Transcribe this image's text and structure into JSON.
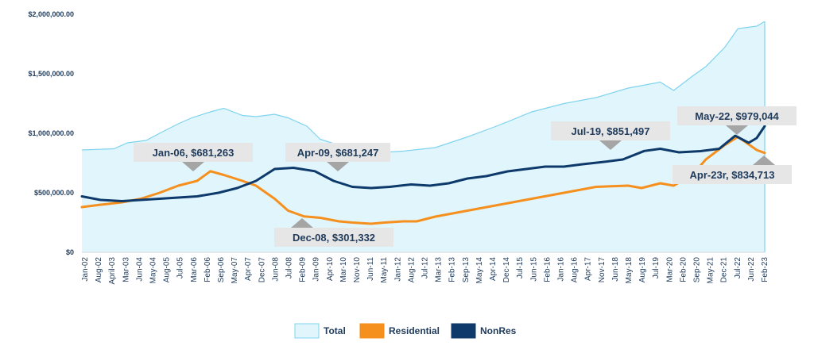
{
  "chart_data": {
    "type": "line",
    "ylim": [
      0,
      2000000
    ],
    "y_ticks": [
      "$0",
      "$500,000.00",
      "$1,000,000.00",
      "$1,500,000.00",
      "$2,000,000.00"
    ],
    "y_tick_values": [
      0,
      500000,
      1000000,
      1500000,
      2000000
    ],
    "x_start": "2002-01",
    "x_end": "2023-04",
    "x_ticks": [
      {
        "label": "Jan-02",
        "date": "2002-01"
      },
      {
        "label": "Aug-02",
        "date": "2002-08"
      },
      {
        "label": "April-03",
        "date": "2003-04"
      },
      {
        "label": "Mar-03",
        "date": "2003-11"
      },
      {
        "label": "Jun-04",
        "date": "2004-06"
      },
      {
        "label": "May-04",
        "date": "2005-01"
      },
      {
        "label": "Aug-05",
        "date": "2005-08"
      },
      {
        "label": "Jul-05",
        "date": "2006-04"
      },
      {
        "label": "Mar-06",
        "date": "2006-11"
      },
      {
        "label": "Feb-06",
        "date": "2007-06"
      },
      {
        "label": "Sep-06",
        "date": "2008-01"
      },
      {
        "label": "May-07",
        "date": "2008-08"
      },
      {
        "label": "Apr-07",
        "date": "2009-04"
      },
      {
        "label": "Dec-07",
        "date": "2009-11"
      },
      {
        "label": "Jun-08",
        "date": "2010-06"
      },
      {
        "label": "Jul-08",
        "date": "2011-01"
      },
      {
        "label": "Feb-09",
        "date": "2011-08"
      },
      {
        "label": "Jan-09",
        "date": "2012-04"
      },
      {
        "label": "Apr-10",
        "date": "2012-11"
      },
      {
        "label": "Mar-10",
        "date": "2013-06"
      },
      {
        "label": "Nov-10",
        "date": "2014-01"
      },
      {
        "label": "Jun-11",
        "date": "2014-08"
      },
      {
        "label": "May-11",
        "date": "2015-04"
      },
      {
        "label": "Jan-12",
        "date": "2015-11"
      },
      {
        "label": "Aug-12",
        "date": "2016-06"
      },
      {
        "label": "Jul-12",
        "date": "2017-01"
      },
      {
        "label": "Mar-13",
        "date": "2017-08"
      },
      {
        "label": "Feb-13",
        "date": "2018-04"
      },
      {
        "label": "Sep-13",
        "date": "2018-11"
      },
      {
        "label": "May-14",
        "date": "2019-06"
      },
      {
        "label": "Apr-14",
        "date": "2020-01"
      },
      {
        "label": "Dec-14",
        "date": "2020-08"
      },
      {
        "label": "Jul-15",
        "date": "2021-04"
      },
      {
        "label": "Jun-15",
        "date": "2021-11"
      },
      {
        "label": "Feb-16",
        "date": "2022-06"
      },
      {
        "label": "Jan-16",
        "date": "2023-01"
      },
      {
        "label": "Aug-16",
        "date": "2023-04"
      }
    ],
    "x_ticks_tail": [
      "Apr-17",
      "Nov-17",
      "Jun-18",
      "May-18",
      "Aug-19",
      "Jul-19",
      "Mar-20",
      "Feb-20",
      "Sep-20",
      "May-21",
      "Dec-21",
      "Jul-22",
      "Jun-22",
      "Feb-23"
    ],
    "series": [
      {
        "name": "Total",
        "color": "#7fd3ee",
        "fill": "#e1f5fd",
        "points": [
          [
            "2002-01",
            860000
          ],
          [
            "2003-01",
            870000
          ],
          [
            "2003-06",
            920000
          ],
          [
            "2004-01",
            940000
          ],
          [
            "2004-06",
            1000000
          ],
          [
            "2005-01",
            1080000
          ],
          [
            "2005-06",
            1130000
          ],
          [
            "2006-01",
            1180000
          ],
          [
            "2006-06",
            1210000
          ],
          [
            "2007-01",
            1150000
          ],
          [
            "2007-06",
            1140000
          ],
          [
            "2008-01",
            1160000
          ],
          [
            "2008-06",
            1130000
          ],
          [
            "2009-01",
            1060000
          ],
          [
            "2009-06",
            950000
          ],
          [
            "2010-01",
            900000
          ],
          [
            "2010-06",
            860000
          ],
          [
            "2011-01",
            820000
          ],
          [
            "2011-06",
            840000
          ],
          [
            "2012-01",
            850000
          ],
          [
            "2013-01",
            880000
          ],
          [
            "2014-01",
            970000
          ],
          [
            "2015-01",
            1070000
          ],
          [
            "2016-01",
            1180000
          ],
          [
            "2017-01",
            1250000
          ],
          [
            "2018-01",
            1300000
          ],
          [
            "2019-01",
            1380000
          ],
          [
            "2020-01",
            1430000
          ],
          [
            "2020-06",
            1360000
          ],
          [
            "2021-01",
            1480000
          ],
          [
            "2021-06",
            1560000
          ],
          [
            "2022-01",
            1720000
          ],
          [
            "2022-06",
            1880000
          ],
          [
            "2023-01",
            1900000
          ],
          [
            "2023-04",
            1940000
          ]
        ]
      },
      {
        "name": "Residential",
        "color": "#f5901e",
        "points": [
          [
            "2002-01",
            380000
          ],
          [
            "2002-08",
            400000
          ],
          [
            "2003-04",
            420000
          ],
          [
            "2003-11",
            450000
          ],
          [
            "2004-06",
            500000
          ],
          [
            "2005-01",
            560000
          ],
          [
            "2005-08",
            600000
          ],
          [
            "2006-01",
            681263
          ],
          [
            "2006-06",
            650000
          ],
          [
            "2007-01",
            600000
          ],
          [
            "2007-06",
            560000
          ],
          [
            "2008-01",
            450000
          ],
          [
            "2008-06",
            350000
          ],
          [
            "2008-12",
            301332
          ],
          [
            "2009-06",
            290000
          ],
          [
            "2010-01",
            260000
          ],
          [
            "2010-06",
            250000
          ],
          [
            "2011-01",
            240000
          ],
          [
            "2011-06",
            250000
          ],
          [
            "2012-01",
            260000
          ],
          [
            "2012-06",
            260000
          ],
          [
            "2013-01",
            300000
          ],
          [
            "2014-01",
            350000
          ],
          [
            "2015-01",
            400000
          ],
          [
            "2016-01",
            450000
          ],
          [
            "2017-01",
            500000
          ],
          [
            "2018-01",
            550000
          ],
          [
            "2019-01",
            560000
          ],
          [
            "2019-06",
            540000
          ],
          [
            "2020-01",
            580000
          ],
          [
            "2020-06",
            560000
          ],
          [
            "2021-01",
            650000
          ],
          [
            "2021-06",
            780000
          ],
          [
            "2022-01",
            900000
          ],
          [
            "2022-06",
            970000
          ],
          [
            "2023-01",
            860000
          ],
          [
            "2023-04",
            834713
          ]
        ]
      },
      {
        "name": "NonRes",
        "color": "#0d3a6b",
        "points": [
          [
            "2002-01",
            470000
          ],
          [
            "2002-08",
            440000
          ],
          [
            "2003-04",
            430000
          ],
          [
            "2003-11",
            440000
          ],
          [
            "2004-06",
            450000
          ],
          [
            "2005-01",
            460000
          ],
          [
            "2005-08",
            470000
          ],
          [
            "2006-04",
            500000
          ],
          [
            "2006-11",
            540000
          ],
          [
            "2007-06",
            600000
          ],
          [
            "2008-01",
            700000
          ],
          [
            "2008-08",
            710000
          ],
          [
            "2009-04",
            681247
          ],
          [
            "2009-11",
            600000
          ],
          [
            "2010-06",
            550000
          ],
          [
            "2011-01",
            540000
          ],
          [
            "2011-08",
            550000
          ],
          [
            "2012-04",
            570000
          ],
          [
            "2012-11",
            560000
          ],
          [
            "2013-06",
            580000
          ],
          [
            "2014-01",
            620000
          ],
          [
            "2014-08",
            640000
          ],
          [
            "2015-04",
            680000
          ],
          [
            "2015-11",
            700000
          ],
          [
            "2016-06",
            720000
          ],
          [
            "2017-01",
            720000
          ],
          [
            "2017-08",
            740000
          ],
          [
            "2018-04",
            760000
          ],
          [
            "2018-11",
            780000
          ],
          [
            "2019-07",
            851497
          ],
          [
            "2020-01",
            870000
          ],
          [
            "2020-08",
            840000
          ],
          [
            "2021-04",
            850000
          ],
          [
            "2021-11",
            870000
          ],
          [
            "2022-05",
            979044
          ],
          [
            "2022-10",
            920000
          ],
          [
            "2023-01",
            960000
          ],
          [
            "2023-04",
            1060000
          ]
        ]
      }
    ],
    "annotations": [
      {
        "text": "Jan-06, $681,263",
        "series": "Residential",
        "date": "2006-01",
        "value": 681263,
        "pointer": "down"
      },
      {
        "text": "Apr-09, $681,247",
        "series": "NonRes",
        "date": "2009-04",
        "value": 681247,
        "pointer": "down"
      },
      {
        "text": "Dec-08, $301,332",
        "series": "Residential",
        "date": "2008-12",
        "value": 301332,
        "pointer": "up"
      },
      {
        "text": "Jul-19, $851,497",
        "series": "NonRes",
        "date": "2019-07",
        "value": 851497,
        "pointer": "down"
      },
      {
        "text": "May-22, $979,044",
        "series": "NonRes",
        "date": "2022-05",
        "value": 979044,
        "pointer": "down"
      },
      {
        "text": "Apr-23r, $834,713",
        "series": "Residential",
        "date": "2023-04",
        "value": 834713,
        "pointer": "up"
      }
    ],
    "legend": [
      "Total",
      "Residential",
      "NonRes"
    ],
    "legend_position": "bottom-center",
    "grid": false
  }
}
